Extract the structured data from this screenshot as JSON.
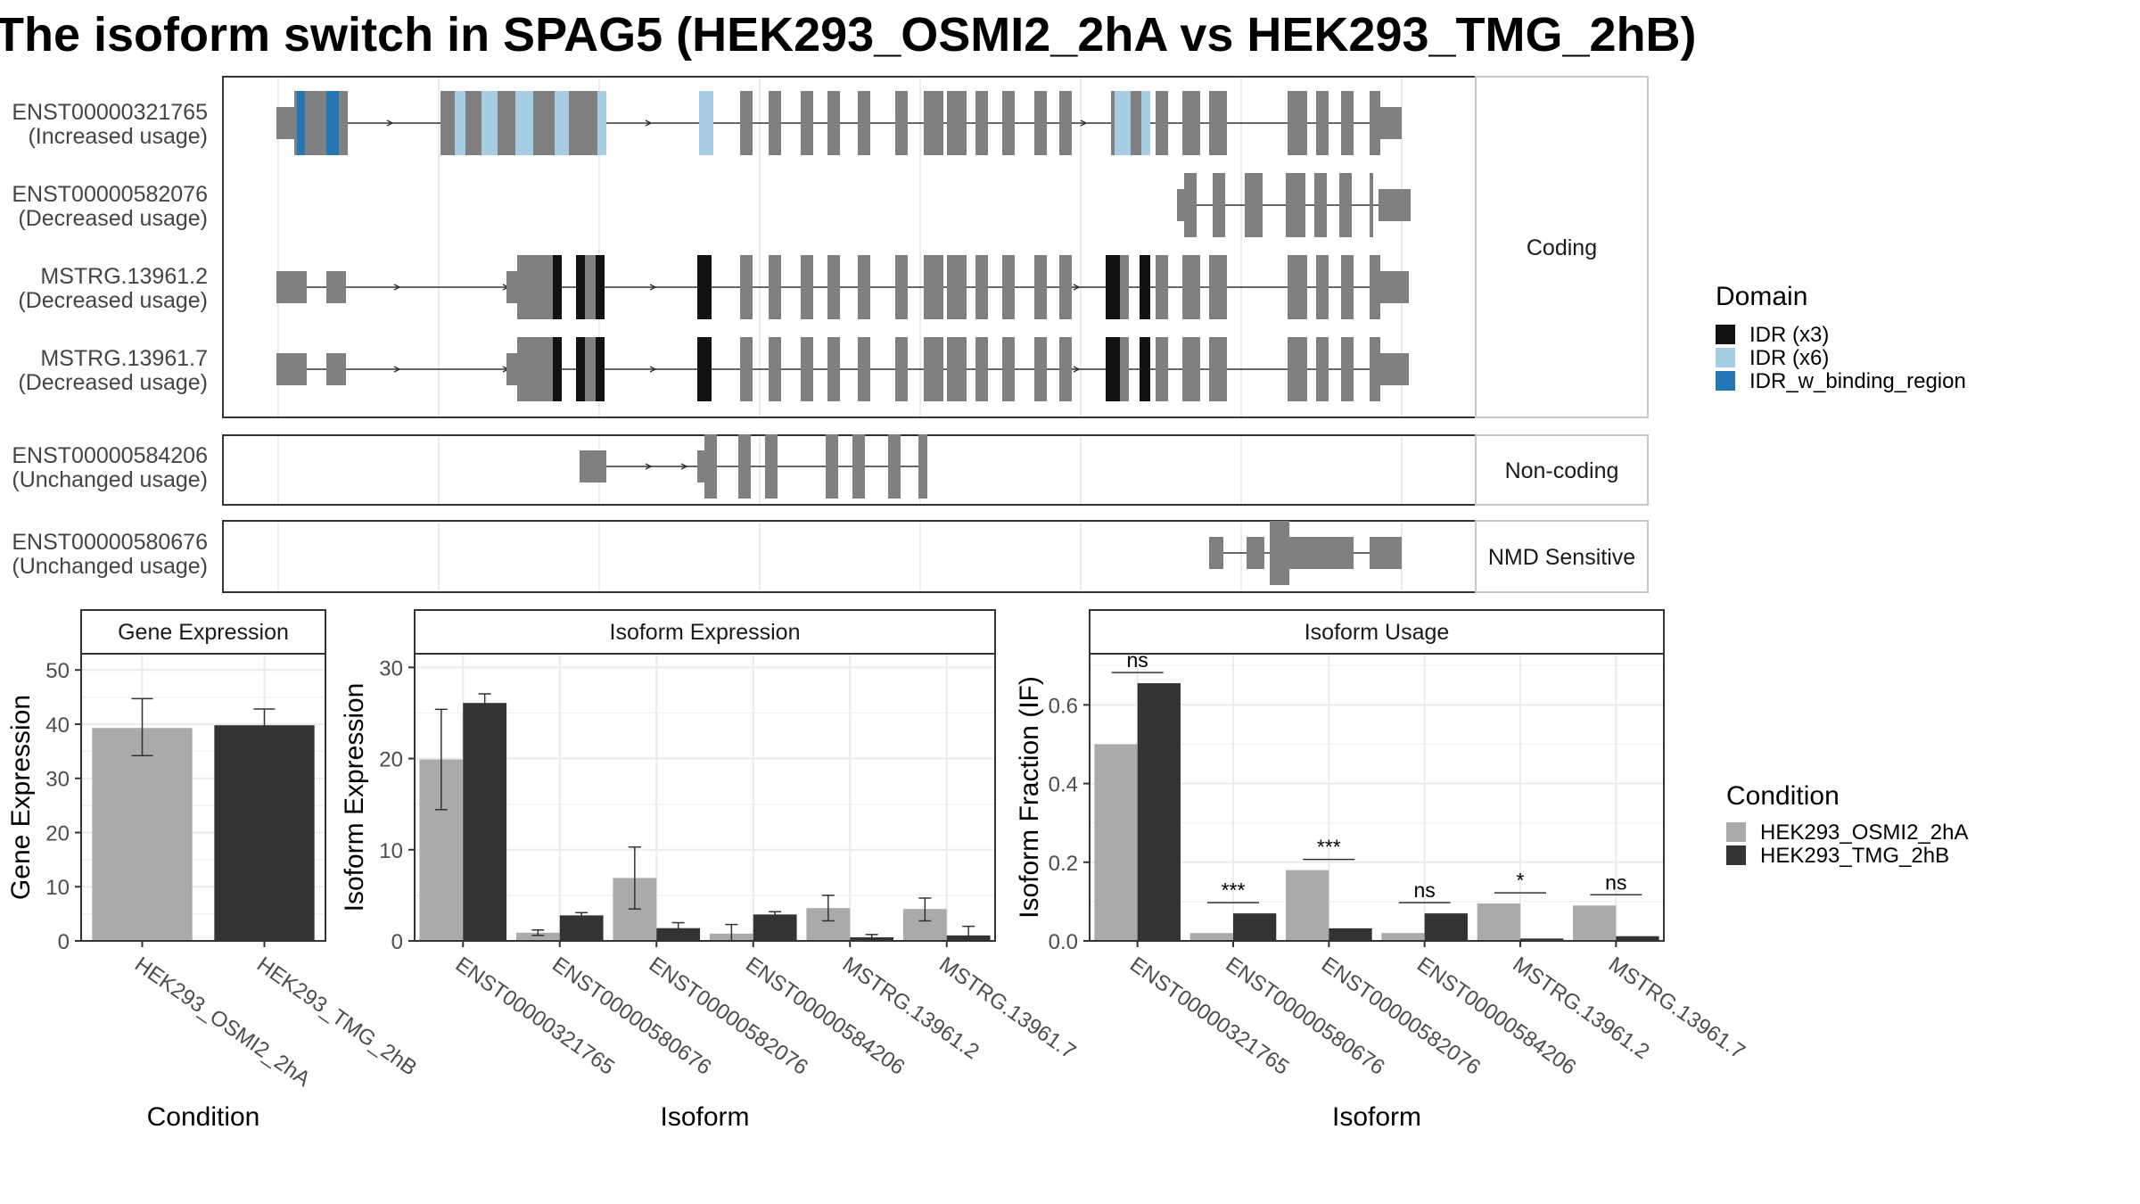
{
  "title": "The isoform switch in SPAG5 (HEK293_OSMI2_2hA vs HEK293_TMG_2hB)",
  "chart_data": [
    {
      "type": "gene-structure",
      "title": "",
      "transcripts": [
        {
          "id": "ENST00000321765",
          "usage": "(Increased usage)",
          "category": "Coding"
        },
        {
          "id": "ENST00000582076",
          "usage": "(Decreased usage)",
          "category": "Coding"
        },
        {
          "id": "MSTRG.13961.2",
          "usage": "(Decreased usage)",
          "category": "Coding"
        },
        {
          "id": "MSTRG.13961.7",
          "usage": "(Decreased usage)",
          "category": "Coding"
        },
        {
          "id": "ENST00000584206",
          "usage": "(Unchanged usage)",
          "category": "Non-coding"
        },
        {
          "id": "ENST00000580676",
          "usage": "(Unchanged usage)",
          "category": "NMD Sensitive"
        }
      ],
      "categories": [
        "Coding",
        "Non-coding",
        "NMD Sensitive"
      ],
      "legend": {
        "title": "Domain",
        "entries": [
          {
            "name": "IDR (x3)",
            "color": "#111111"
          },
          {
            "name": "IDR (x6)",
            "color": "#a6cde3"
          },
          {
            "name": "IDR_w_binding_region",
            "color": "#2277b4"
          }
        ],
        "placement": "right"
      }
    },
    {
      "type": "bar",
      "title": "Gene Expression",
      "xlabel": "Condition",
      "ylabel": "Gene Expression",
      "categories": [
        "HEK293_OSMI2_2hA",
        "HEK293_TMG_2hB"
      ],
      "values": [
        39.3,
        39.8
      ],
      "errors": [
        [
          34.2,
          44.7
        ],
        [
          37.0,
          42.8
        ]
      ],
      "ylim": [
        0,
        53
      ],
      "yticks": [
        0,
        10,
        20,
        30,
        40,
        50
      ]
    },
    {
      "type": "bar",
      "title": "Isoform Expression",
      "xlabel": "Isoform",
      "ylabel": "Isoform Expression",
      "categories": [
        "ENST00000321765",
        "ENST00000580676",
        "ENST00000582076",
        "ENST00000584206",
        "MSTRG.13961.2",
        "MSTRG.13961.7"
      ],
      "series": [
        {
          "name": "HEK293_OSMI2_2hA",
          "values": [
            19.9,
            0.9,
            6.9,
            0.8,
            3.6,
            3.5
          ],
          "errors": [
            [
              14.4,
              25.4
            ],
            [
              0.6,
              1.2
            ],
            [
              3.5,
              10.3
            ],
            [
              0.0,
              1.8
            ],
            [
              2.2,
              5.0
            ],
            [
              2.2,
              4.7
            ]
          ]
        },
        {
          "name": "HEK293_TMG_2hB",
          "values": [
            26.1,
            2.8,
            1.4,
            2.9,
            0.4,
            0.6
          ],
          "errors": [
            [
              25.1,
              27.1
            ],
            [
              2.5,
              3.1
            ],
            [
              0.8,
              2.0
            ],
            [
              2.6,
              3.2
            ],
            [
              0.1,
              0.7
            ],
            [
              0.0,
              1.6
            ]
          ]
        }
      ],
      "ylim": [
        0,
        31.5
      ],
      "yticks": [
        0,
        10,
        20,
        30
      ]
    },
    {
      "type": "bar",
      "title": "Isoform Usage",
      "xlabel": "Isoform",
      "ylabel": "Isoform Fraction (IF)",
      "categories": [
        "ENST00000321765",
        "ENST00000580676",
        "ENST00000582076",
        "ENST00000584206",
        "MSTRG.13961.2",
        "MSTRG.13961.7"
      ],
      "series": [
        {
          "name": "HEK293_OSMI2_2hA",
          "values": [
            0.5,
            0.02,
            0.18,
            0.02,
            0.095,
            0.09
          ]
        },
        {
          "name": "HEK293_TMG_2hB",
          "values": [
            0.655,
            0.07,
            0.032,
            0.07,
            0.006,
            0.012
          ]
        }
      ],
      "annotations": [
        "ns",
        "***",
        "***",
        "ns",
        "*",
        "ns"
      ],
      "ylim": [
        0,
        0.73
      ],
      "yticks": [
        "0.0",
        "0.2",
        "0.4",
        "0.6"
      ],
      "legend": {
        "title": "Condition",
        "entries": [
          {
            "name": "HEK293_OSMI2_2hA",
            "color": "#aaaaaa"
          },
          {
            "name": "HEK293_TMG_2hB",
            "color": "#333333"
          }
        ],
        "placement": "right"
      }
    }
  ]
}
